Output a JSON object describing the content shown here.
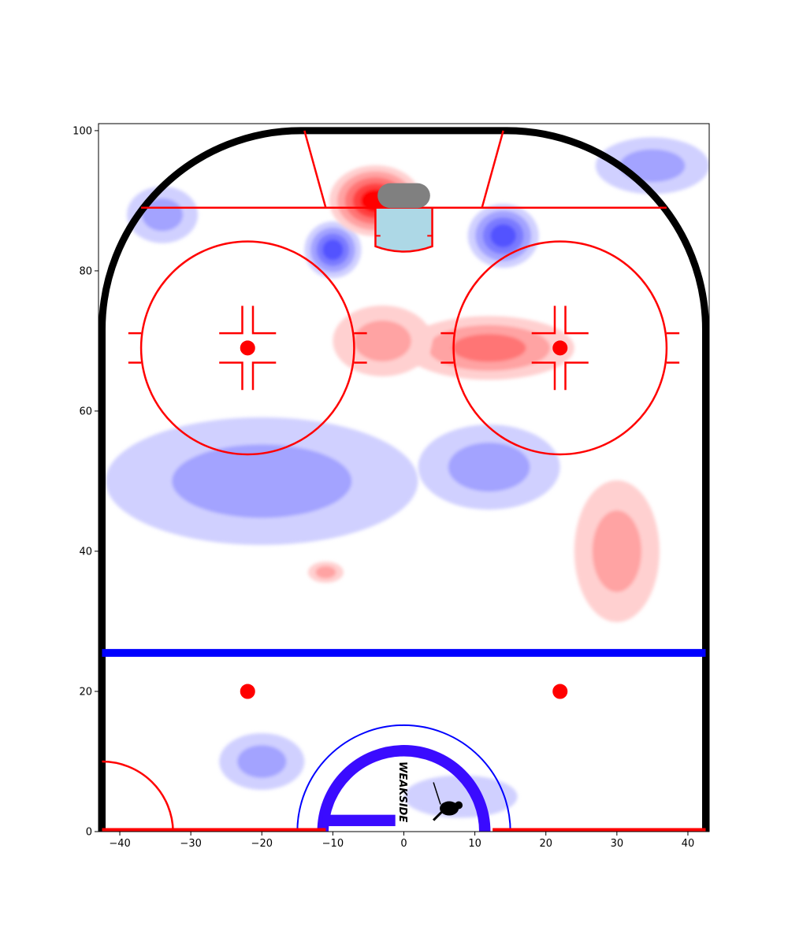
{
  "chart_data": {
    "type": "heatmap",
    "subtype": "hockey-rink-offensive-zone",
    "title": "",
    "xlabel": "",
    "ylabel": "",
    "xlim": [
      -43,
      43
    ],
    "ylim": [
      0,
      101
    ],
    "x_ticks": [
      -40,
      -30,
      -20,
      -10,
      0,
      10,
      20,
      30,
      40
    ],
    "y_ticks": [
      0,
      20,
      40,
      60,
      80,
      100
    ],
    "grid": false,
    "legend": "none",
    "colormap": "bwr",
    "colors": {
      "board": "#000000",
      "red_line": "#ff0000",
      "blue_line": "#0000ff",
      "crease": "#add8e6",
      "net": "#808080",
      "center_circle": "#3a0bff",
      "positive_strong": "#ff0000",
      "positive_weak": "#ffd0d0",
      "negative_strong": "#4b4bff",
      "negative_weak": "#d0d0ff"
    },
    "rink_features": {
      "goal_line_y": 89,
      "blue_line_y": 25.5,
      "faceoff_circles": [
        {
          "x": -22,
          "y": 69,
          "r": 15
        },
        {
          "x": 22,
          "y": 69,
          "r": 15
        }
      ],
      "neutral_dots": [
        {
          "x": -22,
          "y": 20
        },
        {
          "x": 22,
          "y": 20
        }
      ],
      "center_ice_circle_r": 15
    },
    "positive_regions": [
      {
        "x": -4,
        "y": 90,
        "sx": 6.5,
        "sy": 5,
        "level": 0.95
      },
      {
        "x": 12,
        "y": 69,
        "sx": 12,
        "sy": 4.5,
        "level": 0.6
      },
      {
        "x": -3,
        "y": 70,
        "sx": 7,
        "sy": 5,
        "level": 0.45
      },
      {
        "x": 30,
        "y": 40,
        "sx": 6,
        "sy": 10,
        "level": 0.35
      },
      {
        "x": -11,
        "y": 37,
        "sx": 2.5,
        "sy": 1.5,
        "level": 0.3
      }
    ],
    "negative_regions": [
      {
        "x": -10,
        "y": 83,
        "sx": 4,
        "sy": 4,
        "level": 0.7
      },
      {
        "x": 14,
        "y": 85,
        "sx": 5,
        "sy": 4.5,
        "level": 0.75
      },
      {
        "x": -20,
        "y": 50,
        "sx": 22,
        "sy": 9,
        "level": 0.35
      },
      {
        "x": 12,
        "y": 52,
        "sx": 10,
        "sy": 6,
        "level": 0.3
      },
      {
        "x": -20,
        "y": 10,
        "sx": 6,
        "sy": 4,
        "level": 0.3
      },
      {
        "x": 8,
        "y": 5,
        "sx": 8,
        "sy": 3,
        "level": 0.25
      },
      {
        "x": 35,
        "y": 95,
        "sx": 8,
        "sy": 4,
        "level": 0.3
      },
      {
        "x": -34,
        "y": 88,
        "sx": 5,
        "sy": 4,
        "level": 0.3
      }
    ],
    "logo_text": "WEAKSIDE"
  }
}
